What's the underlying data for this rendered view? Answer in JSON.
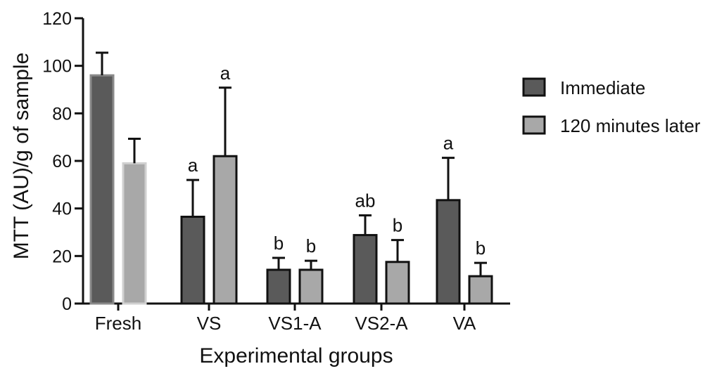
{
  "chart_data": {
    "type": "bar",
    "title": "",
    "xlabel": "Experimental groups",
    "ylabel": "MTT (AU)/g of sample",
    "ylim": [
      0,
      120
    ],
    "yticks": [
      0,
      20,
      40,
      60,
      80,
      100,
      120
    ],
    "categories": [
      "Fresh",
      "VS",
      "VS1-A",
      "VS2-A",
      "VA"
    ],
    "series": [
      {
        "name": "Immediate",
        "color": "#5a5a5a",
        "values": [
          96,
          36.5,
          14.2,
          28.8,
          43.5
        ],
        "errors": [
          9.5,
          15.5,
          5.0,
          8.3,
          17.8
        ],
        "labels": [
          "",
          "a",
          "b",
          "ab",
          "a"
        ]
      },
      {
        "name": "120 minutes later",
        "color": "#a8a8a8",
        "values": [
          59,
          62,
          14.2,
          17.5,
          11.5
        ],
        "errors": [
          10.3,
          28.8,
          3.8,
          9.2,
          5.6
        ],
        "labels": [
          "",
          "a",
          "b",
          "b",
          "b"
        ]
      }
    ],
    "legend": "right",
    "grid": false
  }
}
